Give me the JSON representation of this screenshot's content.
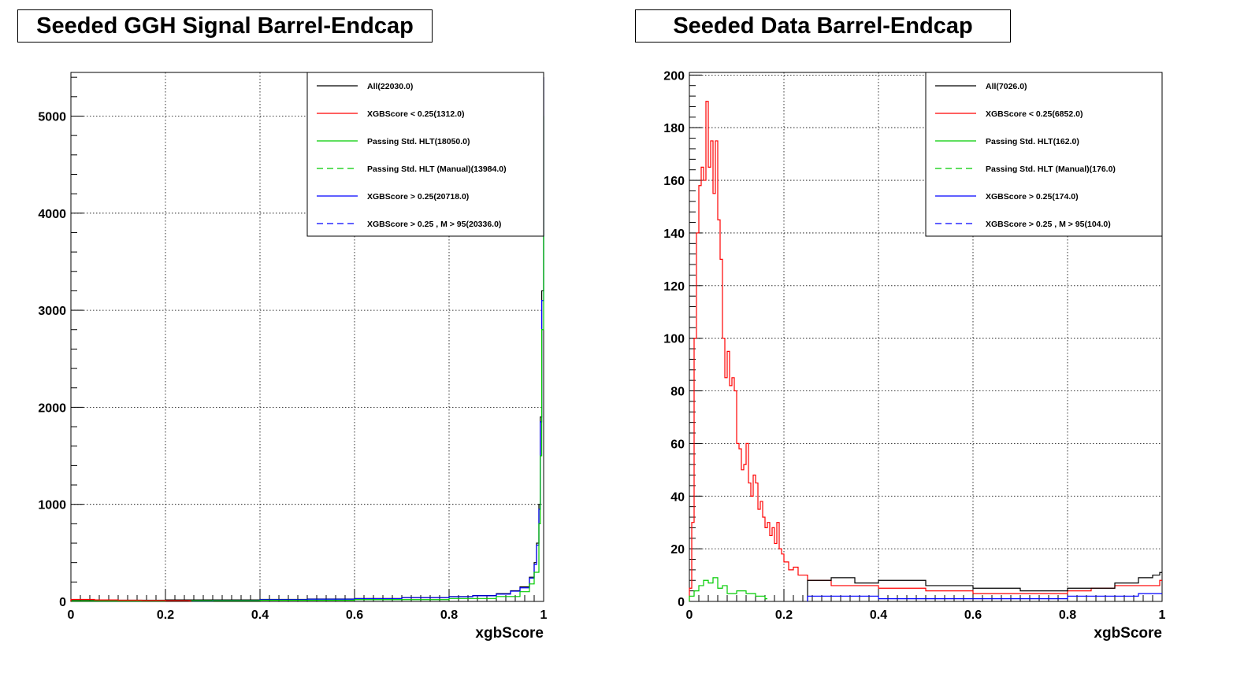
{
  "chart_data": [
    {
      "type": "step-histogram",
      "title": "Seeded GGH Signal Barrel-Endcap",
      "xlabel": "xgbScore",
      "ylabel": "",
      "xlim": [
        0,
        1
      ],
      "ylim": [
        0,
        5450
      ],
      "xticks": [
        "0",
        "0.2",
        "0.4",
        "0.6",
        "0.8",
        "1"
      ],
      "xtick_values": [
        0,
        0.2,
        0.4,
        0.6,
        0.8,
        1
      ],
      "yticks": [
        "0",
        "1000",
        "2000",
        "3000",
        "4000",
        "5000"
      ],
      "ytick_values": [
        0,
        1000,
        2000,
        3000,
        4000,
        5000
      ],
      "grid": true,
      "legend_position": "top-right",
      "legend": [
        {
          "label": "All(22030.0)",
          "color": "#000000",
          "dash": "solid"
        },
        {
          "label": "XGBScore < 0.25(1312.0)",
          "color": "#ff0000",
          "dash": "solid"
        },
        {
          "label": "Passing Std. HLT(18050.0)",
          "color": "#00cc00",
          "dash": "solid"
        },
        {
          "label": "Passing Std. HLT (Manual)(13984.0)",
          "color": "#00cc00",
          "dash": "dashed"
        },
        {
          "label": "XGBScore > 0.25(20718.0)",
          "color": "#0000ff",
          "dash": "solid"
        },
        {
          "label": "XGBScore > 0.25 , M > 95(20336.0)",
          "color": "#0000ff",
          "dash": "dashed"
        }
      ],
      "series": [
        {
          "name": "All(22030.0)",
          "color": "#000000",
          "x": [
            0,
            0.1,
            0.2,
            0.3,
            0.4,
            0.5,
            0.6,
            0.7,
            0.8,
            0.85,
            0.9,
            0.93,
            0.95,
            0.97,
            0.98,
            0.985,
            0.99,
            0.993,
            0.996,
            1.0
          ],
          "y": [
            10,
            12,
            15,
            15,
            20,
            25,
            30,
            40,
            50,
            60,
            80,
            110,
            150,
            250,
            400,
            600,
            1000,
            1900,
            3200,
            5400
          ]
        },
        {
          "name": "XGBScore > 0.25(20718.0)",
          "color": "#0000ff",
          "x": [
            0.25,
            0.3,
            0.4,
            0.5,
            0.6,
            0.7,
            0.8,
            0.85,
            0.9,
            0.93,
            0.95,
            0.97,
            0.98,
            0.985,
            0.99,
            0.993,
            0.996,
            1.0
          ],
          "y": [
            5,
            10,
            18,
            22,
            28,
            38,
            48,
            58,
            75,
            105,
            140,
            240,
            380,
            580,
            950,
            1850,
            3100,
            5400
          ]
        },
        {
          "name": "Passing Std. HLT(18050.0)",
          "color": "#00cc00",
          "x": [
            0,
            0.2,
            0.4,
            0.6,
            0.8,
            0.9,
            0.95,
            0.97,
            0.98,
            0.99,
            0.993,
            0.996,
            1.0
          ],
          "y": [
            5,
            8,
            12,
            18,
            30,
            50,
            100,
            180,
            300,
            800,
            1500,
            2800,
            5000
          ]
        },
        {
          "name": "XGBScore < 0.25(1312.0)",
          "color": "#ff0000",
          "x": [
            0,
            0.05,
            0.1,
            0.15,
            0.2,
            0.25
          ],
          "y": [
            20,
            15,
            12,
            10,
            8,
            5
          ]
        }
      ]
    },
    {
      "type": "step-histogram",
      "title": "Seeded Data Barrel-Endcap",
      "xlabel": "xgbScore",
      "ylabel": "",
      "xlim": [
        0,
        1
      ],
      "ylim": [
        0,
        201
      ],
      "xticks": [
        "0",
        "0.2",
        "0.4",
        "0.6",
        "0.8",
        "1"
      ],
      "xtick_values": [
        0,
        0.2,
        0.4,
        0.6,
        0.8,
        1
      ],
      "yticks": [
        "0",
        "20",
        "40",
        "60",
        "80",
        "100",
        "120",
        "140",
        "160",
        "180",
        "200"
      ],
      "ytick_values": [
        0,
        20,
        40,
        60,
        80,
        100,
        120,
        140,
        160,
        180,
        200
      ],
      "grid": true,
      "legend_position": "top-right",
      "legend": [
        {
          "label": "All(7026.0)",
          "color": "#000000",
          "dash": "solid"
        },
        {
          "label": "XGBScore < 0.25(6852.0)",
          "color": "#ff0000",
          "dash": "solid"
        },
        {
          "label": "Passing Std. HLT(162.0)",
          "color": "#00cc00",
          "dash": "solid"
        },
        {
          "label": "Passing Std. HLT (Manual)(176.0)",
          "color": "#00cc00",
          "dash": "dashed"
        },
        {
          "label": "XGBScore > 0.25(174.0)",
          "color": "#0000ff",
          "dash": "solid"
        },
        {
          "label": "XGBScore > 0.25 , M > 95(104.0)",
          "color": "#0000ff",
          "dash": "dashed"
        }
      ],
      "series": [
        {
          "name": "XGBScore < 0.25(6852.0)",
          "color": "#ff0000",
          "x": [
            0.0,
            0.005,
            0.01,
            0.015,
            0.02,
            0.025,
            0.03,
            0.035,
            0.04,
            0.045,
            0.05,
            0.055,
            0.06,
            0.065,
            0.07,
            0.075,
            0.08,
            0.085,
            0.09,
            0.095,
            0.1,
            0.105,
            0.11,
            0.115,
            0.12,
            0.125,
            0.13,
            0.135,
            0.14,
            0.145,
            0.15,
            0.155,
            0.16,
            0.165,
            0.17,
            0.175,
            0.18,
            0.185,
            0.19,
            0.195,
            0.2,
            0.21,
            0.22,
            0.23,
            0.24,
            0.25,
            0.3,
            0.4,
            0.5,
            0.6,
            0.7,
            0.8,
            0.85,
            0.9,
            0.95,
            0.995
          ],
          "y": [
            5,
            30,
            100,
            140,
            158,
            165,
            160,
            190,
            165,
            175,
            155,
            175,
            145,
            130,
            100,
            85,
            95,
            82,
            85,
            80,
            60,
            58,
            50,
            52,
            60,
            45,
            40,
            48,
            45,
            35,
            38,
            32,
            28,
            30,
            25,
            28,
            22,
            30,
            20,
            18,
            15,
            12,
            13,
            10,
            10,
            8,
            6,
            5,
            4,
            3,
            3,
            4,
            5,
            6,
            6,
            8
          ]
        },
        {
          "name": "All(7026.0)",
          "color": "#000000",
          "x": [
            0.25,
            0.3,
            0.35,
            0.4,
            0.5,
            0.6,
            0.7,
            0.8,
            0.9,
            0.95,
            0.98,
            0.995
          ],
          "y": [
            8,
            9,
            7,
            8,
            6,
            5,
            4,
            5,
            7,
            9,
            10,
            11
          ]
        },
        {
          "name": "Passing Std. HLT(162.0)",
          "color": "#00cc00",
          "x": [
            0.0,
            0.01,
            0.02,
            0.03,
            0.04,
            0.05,
            0.06,
            0.07,
            0.08,
            0.1,
            0.12,
            0.14,
            0.16
          ],
          "y": [
            2,
            4,
            6,
            8,
            7,
            9,
            5,
            6,
            3,
            4,
            3,
            2,
            1
          ]
        },
        {
          "name": "XGBScore > 0.25(174.0)",
          "color": "#0000ff",
          "x": [
            0.25,
            0.3,
            0.4,
            0.5,
            0.6,
            0.7,
            0.8,
            0.9,
            0.95,
            0.995
          ],
          "y": [
            2,
            2,
            1,
            1,
            1,
            1,
            2,
            2,
            3,
            3
          ]
        }
      ]
    }
  ]
}
